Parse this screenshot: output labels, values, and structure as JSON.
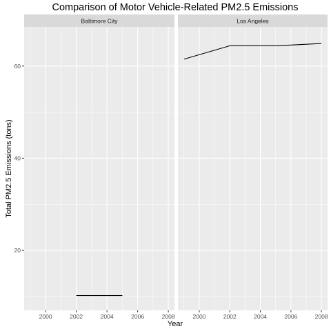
{
  "chart_data": {
    "type": "line",
    "title": "Comparison of Motor Vehicle-Related PM2.5 Emissions",
    "xlabel": "Year",
    "ylabel": "Total PM2.5 Emissions (tons)",
    "xlim": [
      1998.6,
      2008.4
    ],
    "ylim": [
      7,
      68.5
    ],
    "x_ticks": [
      2000,
      2002,
      2004,
      2006,
      2008
    ],
    "y_ticks": [
      20,
      40,
      60
    ],
    "grid": true,
    "facets": [
      {
        "label": "Baltimore City",
        "x": [
          2002,
          2005
        ],
        "y": [
          10.2,
          10.2
        ]
      },
      {
        "label": "Los Angeles",
        "x": [
          1999,
          2002,
          2005,
          2008
        ],
        "y": [
          61.5,
          64.4,
          64.4,
          64.9
        ]
      }
    ]
  }
}
